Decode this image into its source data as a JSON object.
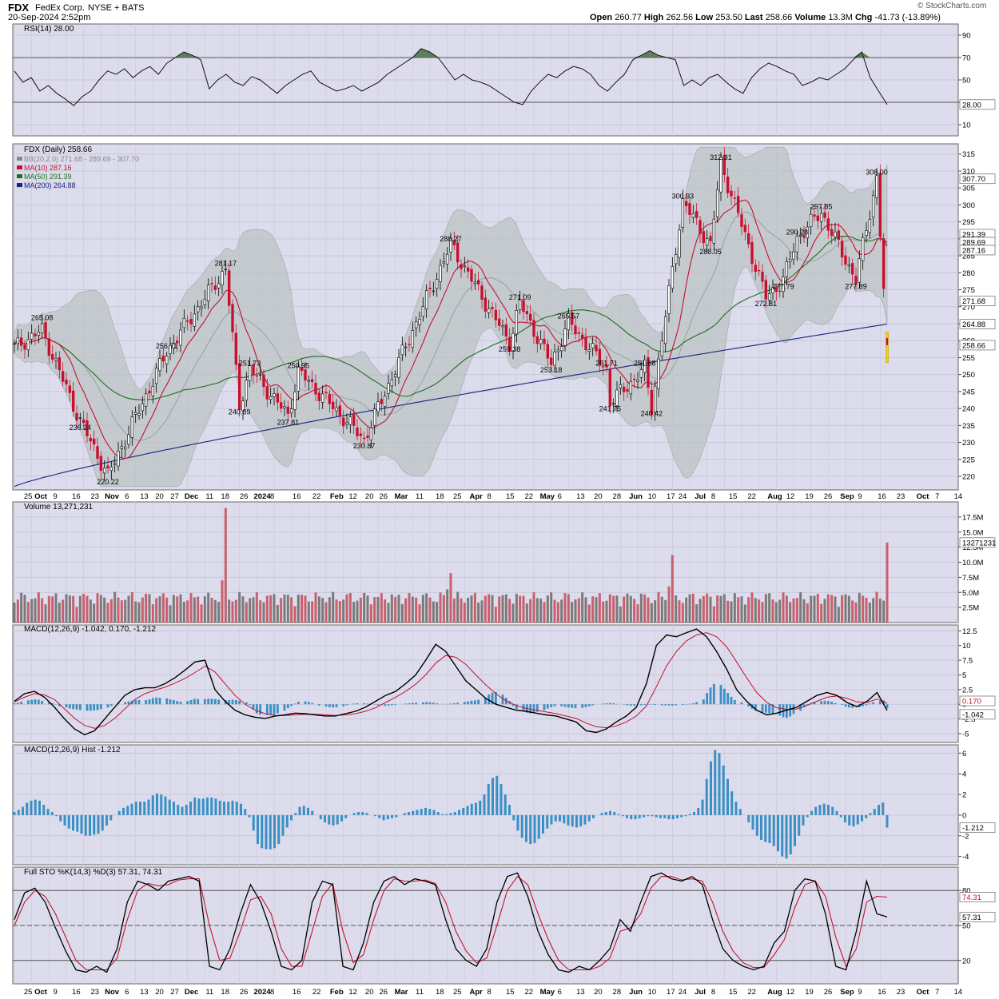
{
  "header": {
    "symbol": "FDX",
    "company": "FedEx Corp.",
    "exchange": "NYSE + BATS",
    "date_time": "20-Sep-2024 2:52pm",
    "watermark": "© StockCharts.com",
    "open_label": "Open",
    "open": "260.77",
    "high_label": "High",
    "high": "262.56",
    "low_label": "Low",
    "low": "253.50",
    "last_label": "Last",
    "last": "258.66",
    "volume_label": "Volume",
    "volume": "13.3M",
    "chg_label": "Chg",
    "chg": "-41.73 (-13.89%)"
  },
  "colors": {
    "panel_bg": "#dcdcec",
    "grid": "#c8c8dc",
    "up": "#000000",
    "down": "#c8102e",
    "ma10": "#c8102e",
    "ma50": "#1e6e1e",
    "ma200": "#1a237e",
    "bb_fill": "#b9c2c2",
    "volume_down": "#c9606c",
    "volume_up": "#7a7a7a",
    "macd_hist": "#3a8fc4",
    "rsi_fill": "#5a7f5a",
    "sto_k": "#000000",
    "sto_d": "#c8102e"
  },
  "chart_data": [
    {
      "type": "line",
      "panel": "rsi",
      "title": "RSI(14) 28.00",
      "yticks": [
        90,
        70,
        50,
        30,
        10
      ],
      "ylim": [
        0,
        100
      ],
      "levels": [
        70,
        30
      ],
      "last_value_label": "28.00",
      "values": [
        58,
        48,
        52,
        40,
        45,
        38,
        33,
        27,
        35,
        40,
        50,
        58,
        55,
        60,
        52,
        58,
        62,
        55,
        65,
        70,
        75,
        72,
        68,
        42,
        50,
        55,
        48,
        45,
        53,
        50,
        44,
        38,
        45,
        50,
        55,
        58,
        48,
        44,
        40,
        42,
        45,
        40,
        44,
        48,
        55,
        60,
        65,
        70,
        78,
        75,
        70,
        60,
        50,
        55,
        50,
        48,
        45,
        40,
        35,
        30,
        28,
        40,
        48,
        55,
        52,
        58,
        62,
        60,
        55,
        45,
        40,
        48,
        55,
        68,
        72,
        76,
        72,
        70,
        68,
        45,
        50,
        45,
        52,
        55,
        48,
        42,
        38,
        52,
        60,
        65,
        62,
        58,
        55,
        45,
        48,
        52,
        50,
        55,
        60,
        68,
        75,
        52,
        40,
        28
      ]
    },
    {
      "type": "candlestick",
      "panel": "price",
      "title": "FDX (Daily) 258.66",
      "legend": [
        {
          "label": "BB(20,2.0) 271.68 - 289.69 - 307.70"
        },
        {
          "label": "MA(10) 287.16"
        },
        {
          "label": "MA(50) 291.39"
        },
        {
          "label": "MA(200) 264.88"
        }
      ],
      "yticks": [
        315,
        310,
        305,
        300,
        295,
        290,
        285,
        280,
        275,
        270,
        265,
        260,
        255,
        250,
        245,
        240,
        235,
        230,
        225,
        220
      ],
      "ylim": [
        216,
        318
      ],
      "x_labels": [
        "25",
        "Oct",
        "9",
        "16",
        "23",
        "Nov",
        "6",
        "13",
        "20",
        "27",
        "Dec",
        "11",
        "18",
        "26",
        "2024",
        "8",
        "16",
        "22",
        "Feb",
        "12",
        "20",
        "26",
        "Mar",
        "11",
        "18",
        "25",
        "Apr",
        "8",
        "15",
        "22",
        "May",
        "6",
        "13",
        "20",
        "28",
        "Jun",
        "10",
        "17",
        "24",
        "Jul",
        "8",
        "15",
        "22",
        "Aug",
        "12",
        "19",
        "26",
        "Sep",
        "9",
        "16",
        "23",
        "Oct",
        "7",
        "14"
      ],
      "annotations": [
        {
          "text": "265.08",
          "i": 8,
          "v": 265.08
        },
        {
          "text": "236.24",
          "i": 19,
          "v": 236.24
        },
        {
          "text": "220.22",
          "i": 27,
          "v": 220.22
        },
        {
          "text": "256.71",
          "i": 44,
          "v": 256.71
        },
        {
          "text": "281.17",
          "i": 61,
          "v": 281.17
        },
        {
          "text": "251.73",
          "i": 68,
          "v": 251.73
        },
        {
          "text": "240.89",
          "i": 65,
          "v": 240.89
        },
        {
          "text": "250.95",
          "i": 82,
          "v": 250.95
        },
        {
          "text": "237.81",
          "i": 79,
          "v": 237.81
        },
        {
          "text": "230.87",
          "i": 101,
          "v": 230.87
        },
        {
          "text": "288.27",
          "i": 126,
          "v": 288.27
        },
        {
          "text": "271.09",
          "i": 146,
          "v": 271.09
        },
        {
          "text": "259.38",
          "i": 143,
          "v": 259.38
        },
        {
          "text": "265.57",
          "i": 160,
          "v": 265.57
        },
        {
          "text": "253.18",
          "i": 155,
          "v": 253.18
        },
        {
          "text": "251.71",
          "i": 171,
          "v": 251.71
        },
        {
          "text": "251.68",
          "i": 182,
          "v": 251.68
        },
        {
          "text": "241.75",
          "i": 172,
          "v": 241.75
        },
        {
          "text": "240.42",
          "i": 184,
          "v": 240.42
        },
        {
          "text": "300.93",
          "i": 193,
          "v": 300.93
        },
        {
          "text": "288.05",
          "i": 201,
          "v": 288.05
        },
        {
          "text": "312.31",
          "i": 204,
          "v": 312.31
        },
        {
          "text": "290.28",
          "i": 226,
          "v": 290.28
        },
        {
          "text": "297.85",
          "i": 233,
          "v": 297.85
        },
        {
          "text": "272.81",
          "i": 217,
          "v": 272.81
        },
        {
          "text": "277.79",
          "i": 222,
          "v": 277.79
        },
        {
          "text": "277.89",
          "i": 243,
          "v": 277.89
        },
        {
          "text": "308.00",
          "i": 249,
          "v": 308.0
        }
      ],
      "right_labels": [
        {
          "text": "307.70",
          "v": 307.7
        },
        {
          "text": "291.39",
          "v": 291.39
        },
        {
          "text": "289.69",
          "v": 289.69
        },
        {
          "text": "287.16",
          "v": 287.16
        },
        {
          "text": "271.68",
          "v": 271.68
        },
        {
          "text": "264.88",
          "v": 264.88
        },
        {
          "text": "258.66",
          "v": 258.66
        }
      ],
      "last_bar": {
        "open": 260.77,
        "high": 262.56,
        "low": 253.5,
        "close": 258.66
      },
      "ma200": {
        "start": 217,
        "end": 264.88
      }
    },
    {
      "type": "bar",
      "panel": "volume",
      "title": "Volume 13,271,231",
      "yticks_labels": [
        "17.5M",
        "15.0M",
        "12.5M",
        "10.0M",
        "7.5M",
        "5.0M",
        "2.5M"
      ],
      "yticks": [
        17.5,
        15,
        12.5,
        10,
        7.5,
        5,
        2.5
      ],
      "ylim": [
        0,
        20
      ],
      "last_value_label": "13271231",
      "spikes": [
        {
          "i": 61,
          "v": 19.0
        },
        {
          "i": 60,
          "v": 7.0
        },
        {
          "i": 125,
          "v": 5.5
        },
        {
          "i": 126,
          "v": 8.2
        },
        {
          "i": 190,
          "v": 11.2
        },
        {
          "i": 189,
          "v": 6.0
        },
        {
          "i": 191,
          "v": 4.5
        },
        {
          "i": 252,
          "v": 13.27
        }
      ]
    },
    {
      "type": "line",
      "panel": "macd",
      "title": "MACD(12,26,9) -1.042, 0.170, -1.212",
      "yticks": [
        12.5,
        10,
        7.5,
        5,
        2.5,
        0,
        -2.5,
        -5
      ],
      "ylim": [
        -6.5,
        13.5
      ],
      "last_value_labels": [
        "0.170",
        "-1.042"
      ],
      "series": [
        {
          "name": "MACD",
          "values": [
            0.5,
            1.8,
            2.2,
            1.2,
            -0.5,
            -2.5,
            -4.2,
            -5.2,
            -4.5,
            -2.5,
            -0.5,
            1.5,
            2.5,
            2.8,
            2.8,
            3.5,
            4.5,
            5.8,
            7.2,
            7.5,
            2.5,
            0.5,
            -1.0,
            -1.8,
            -2.2,
            -2.4,
            -2.0,
            -1.8,
            -1.5,
            -1.6,
            -1.8,
            -2.0,
            -2.0,
            -1.6,
            -1.2,
            -0.5,
            0.5,
            1.5,
            2.2,
            3.5,
            5.0,
            7.5,
            10.2,
            9.0,
            6.5,
            4.0,
            2.5,
            1.0,
            0.0,
            -0.5,
            -1.0,
            -1.2,
            -1.5,
            -1.8,
            -2.0,
            -2.5,
            -3.0,
            -4.5,
            -4.8,
            -4.2,
            -3.0,
            -2.0,
            -0.5,
            3.5,
            10.0,
            11.8,
            11.5,
            12.2,
            12.8,
            11.5,
            9.0,
            6.0,
            2.5,
            0.5,
            -1.0,
            -1.8,
            -1.5,
            -1.0,
            -0.5,
            0.5,
            1.5,
            2.0,
            1.5,
            0.3,
            -0.4,
            0.5,
            2.0,
            -1.042
          ]
        },
        {
          "name": "Signal",
          "values": [
            0.4,
            1.2,
            1.8,
            1.6,
            0.8,
            -0.8,
            -2.4,
            -3.6,
            -4.1,
            -3.6,
            -2.4,
            -0.8,
            0.8,
            1.8,
            2.4,
            2.9,
            3.6,
            4.4,
            5.4,
            6.5,
            5.5,
            3.5,
            1.5,
            0.0,
            -1.0,
            -1.6,
            -1.9,
            -1.9,
            -1.8,
            -1.7,
            -1.7,
            -1.8,
            -1.9,
            -1.8,
            -1.6,
            -1.2,
            -0.6,
            0.3,
            1.2,
            2.2,
            3.4,
            5.0,
            7.0,
            8.3,
            8.0,
            6.8,
            5.0,
            3.3,
            1.8,
            0.6,
            -0.2,
            -0.7,
            -1.0,
            -1.3,
            -1.6,
            -2.0,
            -2.4,
            -3.2,
            -3.8,
            -4.0,
            -3.7,
            -3.0,
            -2.0,
            -0.3,
            3.0,
            6.5,
            9.0,
            10.8,
            11.8,
            12.2,
            11.5,
            9.8,
            7.2,
            4.5,
            2.0,
            0.3,
            -0.6,
            -0.9,
            -0.8,
            -0.2,
            0.5,
            1.2,
            1.4,
            1.0,
            0.4,
            0.3,
            0.9,
            0.17
          ]
        }
      ]
    },
    {
      "type": "bar",
      "panel": "macd_hist",
      "title": "MACD(12,26,9) Hist -1.212",
      "yticks": [
        6,
        4,
        2,
        0,
        -2,
        -4
      ],
      "ylim": [
        -4.8,
        6.8
      ],
      "last_value_label": "-1.212",
      "values": [
        0.3,
        0.5,
        0.8,
        1.2,
        1.4,
        1.5,
        1.4,
        1.0,
        0.6,
        0.3,
        -0.1,
        -0.6,
        -1.0,
        -1.3,
        -1.5,
        -1.6,
        -1.8,
        -2.0,
        -2.0,
        -1.9,
        -1.8,
        -1.5,
        -1.0,
        -0.5,
        0.0,
        0.4,
        0.7,
        0.9,
        1.1,
        1.3,
        1.3,
        1.3,
        1.5,
        1.9,
        2.1,
        2.0,
        1.8,
        1.5,
        1.3,
        1.0,
        0.8,
        1.0,
        1.3,
        1.7,
        1.6,
        1.6,
        1.7,
        1.7,
        1.6,
        1.4,
        1.3,
        1.3,
        1.4,
        1.3,
        1.1,
        0.6,
        -0.2,
        -1.5,
        -2.8,
        -3.2,
        -3.3,
        -3.3,
        -3.2,
        -2.8,
        -2.0,
        -1.2,
        -0.5,
        0.2,
        0.8,
        0.9,
        0.7,
        0.4,
        0.0,
        -0.4,
        -0.7,
        -0.9,
        -1.0,
        -0.9,
        -0.6,
        -0.3,
        0.0,
        0.2,
        0.3,
        0.3,
        0.2,
        0.0,
        -0.1,
        -0.3,
        -0.5,
        -0.4,
        -0.3,
        -0.2,
        0.0,
        0.2,
        0.3,
        0.4,
        0.5,
        0.6,
        0.7,
        0.6,
        0.5,
        0.3,
        0.1,
        0.1,
        0.2,
        0.3,
        0.5,
        0.7,
        0.9,
        1.1,
        1.2,
        1.4,
        2.0,
        3.0,
        3.6,
        3.8,
        3.0,
        2.0,
        1.0,
        -0.5,
        -1.5,
        -2.2,
        -2.6,
        -2.8,
        -2.7,
        -2.3,
        -1.8,
        -1.3,
        -0.9,
        -0.6,
        -0.6,
        -0.8,
        -1.0,
        -1.1,
        -1.2,
        -1.1,
        -0.9,
        -0.6,
        -0.3,
        0.0,
        0.2,
        0.3,
        0.4,
        0.3,
        0.1,
        -0.1,
        -0.3,
        -0.4,
        -0.4,
        -0.3,
        -0.2,
        -0.1,
        -0.1,
        -0.2,
        -0.3,
        -0.3,
        -0.4,
        -0.4,
        -0.3,
        -0.2,
        -0.1,
        0.1,
        0.3,
        0.7,
        1.5,
        3.5,
        5.2,
        6.3,
        6.0,
        4.8,
        3.5,
        2.3,
        1.3,
        0.6,
        0.0,
        -0.7,
        -1.4,
        -2.0,
        -2.4,
        -2.6,
        -2.7,
        -3.0,
        -3.5,
        -4.0,
        -4.2,
        -3.8,
        -3.0,
        -2.0,
        -1.0,
        -0.2,
        0.4,
        0.8,
        1.0,
        1.1,
        1.0,
        0.8,
        0.4,
        -0.2,
        -0.7,
        -1.0,
        -1.1,
        -0.9,
        -0.6,
        -0.3,
        0.2,
        0.6,
        1.0,
        1.212,
        -1.212
      ]
    },
    {
      "type": "line",
      "panel": "stochastic",
      "title": "Full STO %K(14,3) %D(3) 57.31, 74.31",
      "yticks": [
        80,
        50,
        20
      ],
      "ylim": [
        0,
        100
      ],
      "levels": [
        80,
        50,
        20
      ],
      "last_value_labels": [
        "74.31",
        "57.31"
      ],
      "series": [
        {
          "name": "%K",
          "values": [
            55,
            78,
            82,
            70,
            48,
            28,
            12,
            10,
            15,
            10,
            30,
            70,
            88,
            85,
            80,
            88,
            90,
            92,
            88,
            15,
            12,
            30,
            60,
            85,
            70,
            45,
            15,
            12,
            20,
            70,
            88,
            85,
            15,
            12,
            35,
            70,
            88,
            92,
            85,
            90,
            88,
            85,
            55,
            30,
            20,
            15,
            30,
            70,
            92,
            95,
            75,
            45,
            25,
            12,
            10,
            15,
            12,
            20,
            30,
            55,
            45,
            70,
            92,
            95,
            90,
            88,
            92,
            85,
            55,
            30,
            20,
            15,
            12,
            15,
            35,
            45,
            80,
            90,
            88,
            60,
            15,
            12,
            45,
            88,
            60,
            57.31
          ]
        },
        {
          "name": "%D",
          "values": [
            50,
            70,
            80,
            75,
            60,
            40,
            20,
            12,
            12,
            12,
            22,
            55,
            80,
            86,
            84,
            85,
            89,
            90,
            90,
            50,
            20,
            22,
            45,
            72,
            75,
            60,
            30,
            15,
            15,
            45,
            75,
            86,
            45,
            18,
            25,
            55,
            80,
            90,
            88,
            88,
            89,
            86,
            70,
            45,
            28,
            18,
            22,
            50,
            80,
            92,
            85,
            60,
            38,
            20,
            12,
            12,
            12,
            15,
            22,
            45,
            48,
            60,
            82,
            92,
            92,
            89,
            90,
            88,
            70,
            45,
            28,
            18,
            14,
            14,
            25,
            38,
            65,
            85,
            88,
            75,
            40,
            15,
            30,
            70,
            75,
            74.31
          ]
        }
      ]
    }
  ]
}
